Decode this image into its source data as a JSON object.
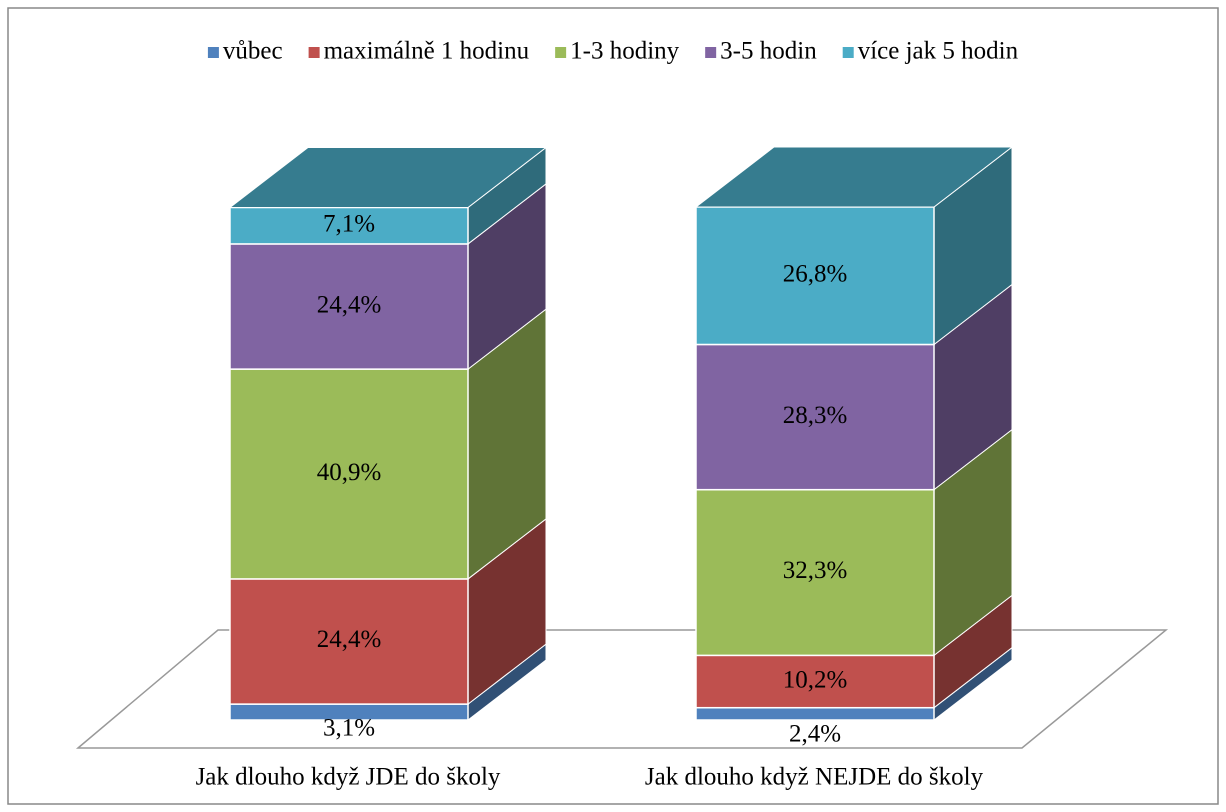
{
  "chart_data": {
    "type": "stacked-bar-3d",
    "categories": [
      "Jak dlouho když JDE do školy",
      "Jak dlouho když NEJDE do školy"
    ],
    "series": [
      {
        "name": "vůbec",
        "color": "#4f81bd",
        "values": [
          3.1,
          2.4
        ],
        "value_labels": [
          "3,1%",
          "2,4%"
        ]
      },
      {
        "name": "maximálně 1 hodinu",
        "color": "#c0504d",
        "values": [
          24.4,
          10.2
        ],
        "value_labels": [
          "24,4%",
          "10,2%"
        ]
      },
      {
        "name": "1-3 hodiny",
        "color": "#9bbb59",
        "values": [
          40.9,
          32.3
        ],
        "value_labels": [
          "40,9%",
          "32,3%"
        ]
      },
      {
        "name": "3-5 hodin",
        "color": "#8064a2",
        "values": [
          24.4,
          28.3
        ],
        "value_labels": [
          "24,4%",
          "28,3%"
        ]
      },
      {
        "name": "více jak 5 hodin",
        "color": "#4bacc6",
        "values": [
          7.1,
          26.8
        ],
        "value_labels": [
          "7,1%",
          "26,8%"
        ]
      }
    ],
    "ylim": [
      0,
      100
    ],
    "legend": "top"
  }
}
